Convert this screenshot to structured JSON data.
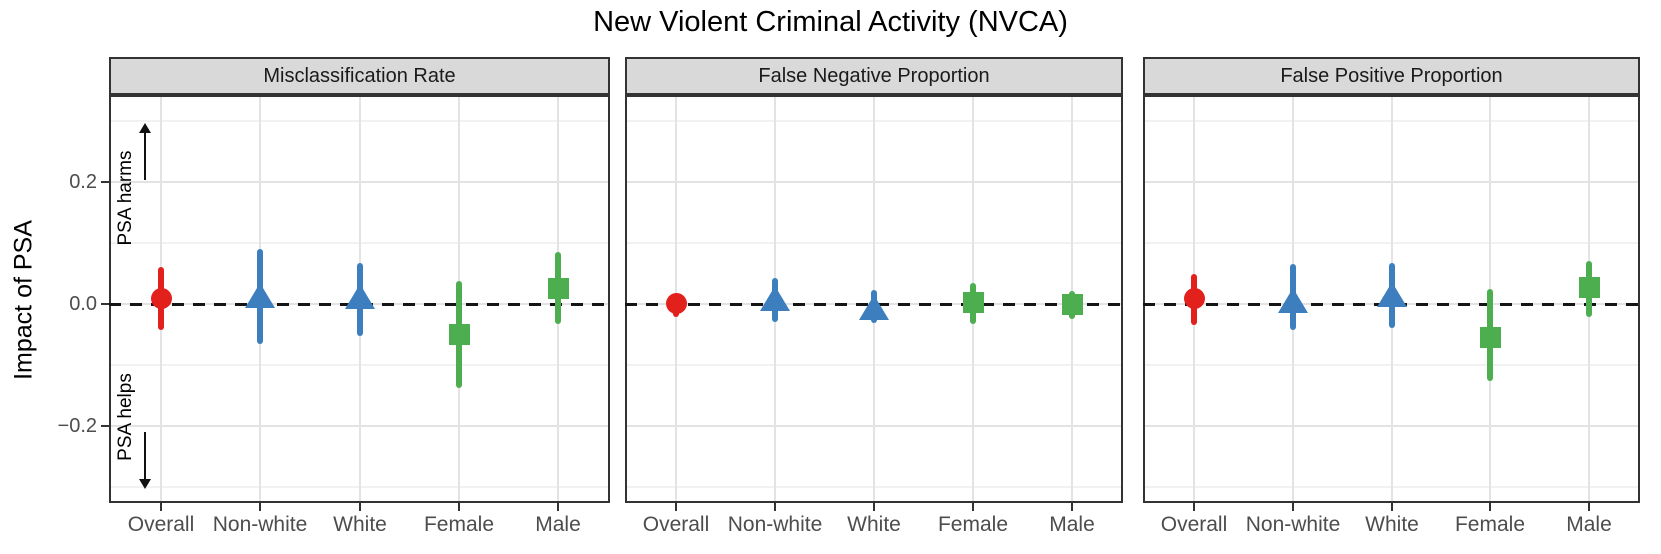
{
  "title": "New Violent Criminal Activity (NVCA)",
  "annotations": {
    "harms_label": "PSA harms",
    "helps_label": "PSA helps"
  },
  "palette": {
    "overall_red": "#E2201C",
    "race_blue": "#3D7EBF",
    "gender_green": "#4CAE4E",
    "strip_bg": "#D9D9D9",
    "panel_border": "#333333",
    "grid_major": "#E3E3E3",
    "grid_minor": "#F1F1F1",
    "reference_line": "#141414",
    "tick_text": "#4D4D4D"
  },
  "chart_data": {
    "type": "scatter",
    "subtype": "pointrange-facets",
    "title": "New Violent Criminal Activity (NVCA)",
    "ylabel": "Impact of PSA",
    "xlabel": "",
    "legend": "none",
    "grid": {
      "major": [
        0.2,
        0.0,
        -0.2
      ],
      "minor": [
        0.3,
        0.1,
        -0.1,
        -0.3
      ]
    },
    "ylim": [
      -0.325,
      0.34
    ],
    "reference_line_y": 0,
    "yticks": [
      {
        "value": 0.2,
        "label": "0.2"
      },
      {
        "value": 0.0,
        "label": "0.0"
      },
      {
        "value": -0.2,
        "label": "−0.2"
      }
    ],
    "categories": [
      "Overall",
      "Non-white",
      "White",
      "Female",
      "Male"
    ],
    "groups": {
      "Overall": {
        "shape": "circle",
        "color": "#E2201C"
      },
      "Non-white": {
        "shape": "triangle",
        "color": "#3D7EBF"
      },
      "White": {
        "shape": "triangle",
        "color": "#3D7EBF"
      },
      "Female": {
        "shape": "square",
        "color": "#4CAE4E"
      },
      "Male": {
        "shape": "square",
        "color": "#4CAE4E"
      }
    },
    "panels": [
      {
        "label": "Misclassification Rate",
        "points": [
          {
            "category": "Overall",
            "estimate": 0.01,
            "ci_low": -0.043,
            "ci_high": 0.06
          },
          {
            "category": "Non-white",
            "estimate": 0.013,
            "ci_low": -0.065,
            "ci_high": 0.09
          },
          {
            "category": "White",
            "estimate": 0.012,
            "ci_low": -0.052,
            "ci_high": 0.068
          },
          {
            "category": "Female",
            "estimate": -0.049,
            "ci_low": -0.138,
            "ci_high": 0.038
          },
          {
            "category": "Male",
            "estimate": 0.026,
            "ci_low": -0.033,
            "ci_high": 0.085
          }
        ]
      },
      {
        "label": "False Negative Proportion",
        "points": [
          {
            "category": "Overall",
            "estimate": 0.001,
            "ci_low": -0.022,
            "ci_high": 0.018
          },
          {
            "category": "Non-white",
            "estimate": 0.008,
            "ci_low": -0.029,
            "ci_high": 0.043
          },
          {
            "category": "White",
            "estimate": -0.006,
            "ci_low": -0.031,
            "ci_high": 0.023
          },
          {
            "category": "Female",
            "estimate": 0.003,
            "ci_low": -0.033,
            "ci_high": 0.035
          },
          {
            "category": "Male",
            "estimate": 0.0,
            "ci_low": -0.025,
            "ci_high": 0.021
          }
        ]
      },
      {
        "label": "False Positive Proportion",
        "points": [
          {
            "category": "Overall",
            "estimate": 0.01,
            "ci_low": -0.035,
            "ci_high": 0.049
          },
          {
            "category": "Non-white",
            "estimate": 0.005,
            "ci_low": -0.043,
            "ci_high": 0.065
          },
          {
            "category": "White",
            "estimate": 0.015,
            "ci_low": -0.04,
            "ci_high": 0.067
          },
          {
            "category": "Female",
            "estimate": -0.054,
            "ci_low": -0.127,
            "ci_high": 0.024
          },
          {
            "category": "Male",
            "estimate": 0.028,
            "ci_low": -0.022,
            "ci_high": 0.07
          }
        ]
      }
    ]
  }
}
